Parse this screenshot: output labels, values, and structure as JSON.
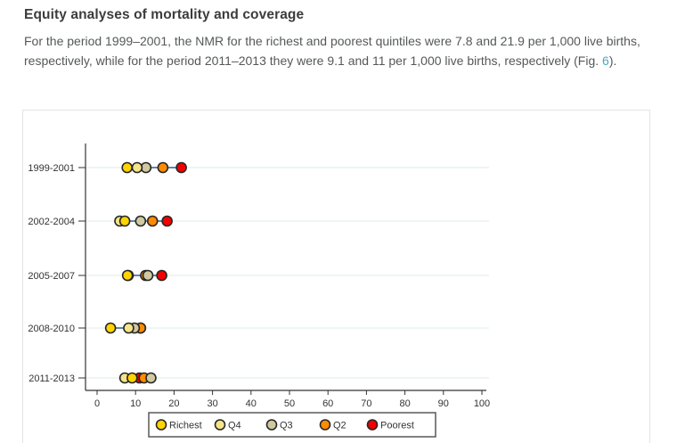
{
  "article": {
    "heading": "Equity analyses of mortality and coverage",
    "paragraph": {
      "before_link": "For the period 1999–2001, the NMR for the richest and poorest quintiles were 7.8 and 21.9 per 1,000 live births, respectively, while for the period 2011–2013 they were 9.1 and 11 per 1,000 live births, respectively (Fig. ",
      "link_text": "6",
      "after_link": ")."
    }
  },
  "chart_data": {
    "type": "scatter",
    "subtype": "horizontal-dot-plot",
    "title": "",
    "xlabel": "",
    "ylabel": "",
    "categories": [
      "1999-2001",
      "2002-2004",
      "2005-2007",
      "2008-2010",
      "2011-2013"
    ],
    "series": [
      {
        "name": "Richest",
        "color": "#ffd400",
        "values": [
          7.8,
          7.2,
          7.9,
          3.5,
          9.1
        ]
      },
      {
        "name": "Q4",
        "color": "#f5e489",
        "values": [
          10.4,
          5.9,
          8.1,
          8.2,
          7.2
        ]
      },
      {
        "name": "Q3",
        "color": "#d0c9a1",
        "values": [
          12.7,
          11.3,
          13.2,
          9.7,
          14.0
        ]
      },
      {
        "name": "Q2",
        "color": "#ff8c00",
        "values": [
          17.1,
          14.4,
          12.6,
          11.3,
          12.2
        ]
      },
      {
        "name": "Poorest",
        "color": "#f40000",
        "values": [
          21.9,
          18.2,
          16.8,
          11.3,
          11.0
        ]
      }
    ],
    "xlim": [
      0,
      100
    ],
    "x_ticks": [
      0,
      10,
      20,
      30,
      40,
      50,
      60,
      70,
      80,
      90,
      100
    ],
    "grid": "horizontal-per-category",
    "legend_position": "bottom",
    "legend_labels": [
      "Richest",
      "Q4",
      "Q3",
      "Q2",
      "Poorest"
    ],
    "unit": "per 1,000 live births",
    "colors": {
      "marker_outline": "#262626",
      "connector_line": "#2e5f8a",
      "gridline": "#dcecea",
      "axis": "#333333",
      "legend_border": "#4d4d4d"
    }
  }
}
